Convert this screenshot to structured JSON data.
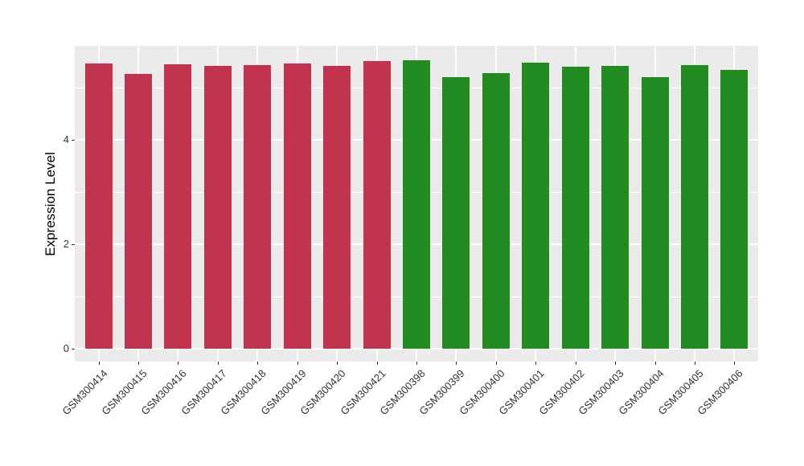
{
  "chart_data": {
    "type": "bar",
    "title": "",
    "xlabel": "",
    "ylabel": "Expression Level",
    "categories": [
      "GSM300414",
      "GSM300415",
      "GSM300416",
      "GSM300417",
      "GSM300418",
      "GSM300419",
      "GSM300420",
      "GSM300421",
      "GSM300398",
      "GSM300399",
      "GSM300400",
      "GSM300401",
      "GSM300402",
      "GSM300403",
      "GSM300404",
      "GSM300405",
      "GSM300406"
    ],
    "values": [
      5.46,
      5.26,
      5.45,
      5.42,
      5.43,
      5.46,
      5.42,
      5.51,
      5.52,
      5.2,
      5.28,
      5.47,
      5.4,
      5.42,
      5.2,
      5.43,
      5.34
    ],
    "groups": [
      "red",
      "red",
      "red",
      "red",
      "red",
      "red",
      "red",
      "red",
      "green",
      "green",
      "green",
      "green",
      "green",
      "green",
      "green",
      "green",
      "green"
    ],
    "group_colors": {
      "red": "#C2334D",
      "green": "#228B22"
    },
    "yticks": [
      0,
      2,
      4
    ],
    "minor_yticks": [
      1,
      3,
      5
    ],
    "ylim": [
      -0.28,
      5.8
    ],
    "legend": "none",
    "grid": "on",
    "panel_bg": "#EBEBEB",
    "grid_color": "#FFFFFF"
  }
}
